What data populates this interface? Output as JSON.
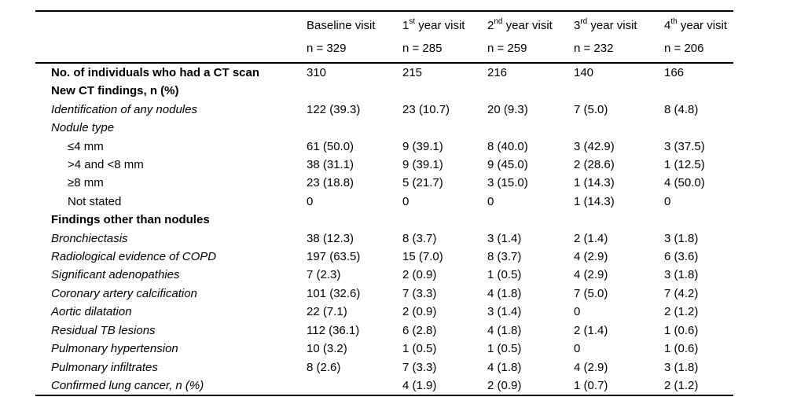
{
  "page": {
    "background": "#ffffff",
    "text_color": "#000000",
    "rule_color": "#000000"
  },
  "table": {
    "columns": [
      {
        "prefix": "Baseline visit",
        "sup": "",
        "suffix": "",
        "n_label": "n = 329"
      },
      {
        "prefix": "1",
        "sup": "st",
        "suffix": " year visit",
        "n_label": "n = 285"
      },
      {
        "prefix": "2",
        "sup": "nd",
        "suffix": " year visit",
        "n_label": "n = 259"
      },
      {
        "prefix": "3",
        "sup": "rd",
        "suffix": " year visit",
        "n_label": "n = 232"
      },
      {
        "prefix": "4",
        "sup": "th",
        "suffix": " year visit",
        "n_label": "n = 206"
      }
    ],
    "rows": [
      {
        "label": "No. of individuals who had a CT scan",
        "style": "bold",
        "values": [
          "310",
          "215",
          "216",
          "140",
          "166"
        ]
      },
      {
        "label": "New CT findings, n (%)",
        "style": "bold",
        "values": [
          "",
          "",
          "",
          "",
          ""
        ]
      },
      {
        "label": "Identification of any nodules",
        "style": "italic",
        "values": [
          "122 (39.3)",
          "23 (10.7)",
          "20 (9.3)",
          "7 (5.0)",
          "8 (4.8)"
        ]
      },
      {
        "label": "Nodule type",
        "style": "italic",
        "values": [
          "",
          "",
          "",
          "",
          ""
        ]
      },
      {
        "label": "≤4 mm",
        "style": "indent",
        "values": [
          "61 (50.0)",
          "9 (39.1)",
          "8 (40.0)",
          "3 (42.9)",
          "3 (37.5)"
        ]
      },
      {
        "label": ">4 and <8 mm",
        "style": "indent",
        "values": [
          "38 (31.1)",
          "9 (39.1)",
          "9 (45.0)",
          "2 (28.6)",
          "1 (12.5)"
        ]
      },
      {
        "label": "≥8 mm",
        "style": "indent",
        "values": [
          "23 (18.8)",
          "5 (21.7)",
          "3 (15.0)",
          "1 (14.3)",
          "4 (50.0)"
        ]
      },
      {
        "label": "Not stated",
        "style": "indent",
        "values": [
          "0",
          "0",
          "0",
          "1 (14.3)",
          "0"
        ]
      },
      {
        "label": "Findings other than nodules",
        "style": "bold",
        "values": [
          "",
          "",
          "",
          "",
          ""
        ]
      },
      {
        "label": "Bronchiectasis",
        "style": "italic",
        "values": [
          "38 (12.3)",
          "8 (3.7)",
          "3 (1.4)",
          "2 (1.4)",
          "3 (1.8)"
        ]
      },
      {
        "label": "Radiological evidence of COPD",
        "style": "italic",
        "values": [
          "197 (63.5)",
          "15 (7.0)",
          "8 (3.7)",
          "4 (2.9)",
          "6 (3.6)"
        ]
      },
      {
        "label": "Significant adenopathies",
        "style": "italic",
        "values": [
          "7 (2.3)",
          "2 (0.9)",
          "1 (0.5)",
          "4 (2.9)",
          "3 (1.8)"
        ]
      },
      {
        "label": "Coronary artery calcification",
        "style": "italic",
        "values": [
          "101 (32.6)",
          "7 (3.3)",
          "4 (1.8)",
          "7 (5.0)",
          "7 (4.2)"
        ]
      },
      {
        "label": "Aortic dilatation",
        "style": "italic",
        "values": [
          "22 (7.1)",
          "2 (0.9)",
          "3 (1.4)",
          "0",
          "2 (1.2)"
        ]
      },
      {
        "label": "Residual TB lesions",
        "style": "italic",
        "values": [
          "112 (36.1)",
          "6 (2.8)",
          "4 (1.8)",
          "2 (1.4)",
          "1 (0.6)"
        ]
      },
      {
        "label": "Pulmonary hypertension",
        "style": "italic",
        "values": [
          "10 (3.2)",
          "1 (0.5)",
          "1 (0.5)",
          "0",
          "1 (0.6)"
        ]
      },
      {
        "label": "Pulmonary infiltrates",
        "style": "italic",
        "values": [
          "8 (2.6)",
          "7 (3.3)",
          "4 (1.8)",
          "4 (2.9)",
          "3 (1.8)"
        ]
      },
      {
        "label": "Confirmed lung cancer, n (%)",
        "style": "italic",
        "values": [
          "",
          "4 (1.9)",
          "2 (0.9)",
          "1 (0.7)",
          "2 (1.2)"
        ]
      }
    ]
  }
}
